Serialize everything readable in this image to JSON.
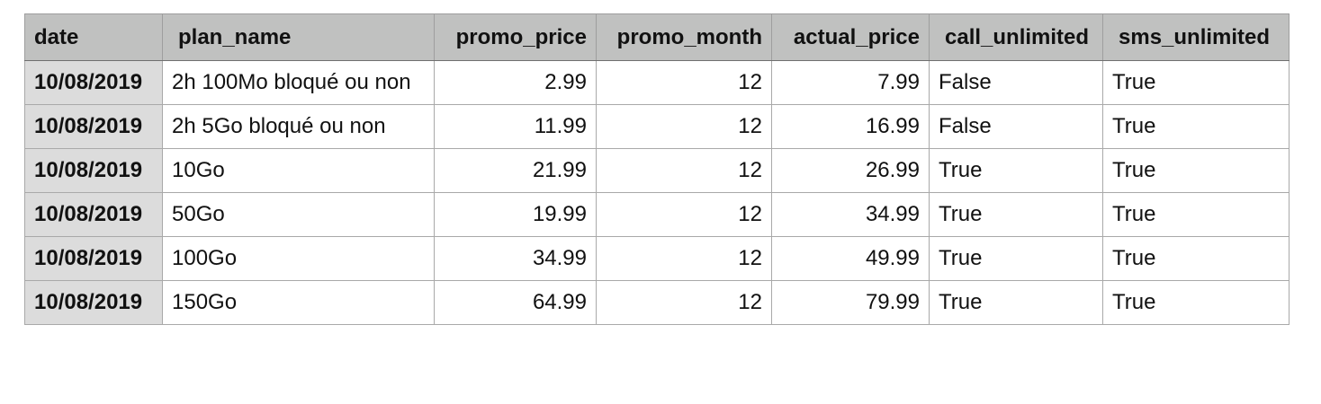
{
  "table": {
    "headers": [
      {
        "key": "date",
        "label": "date",
        "align": "left"
      },
      {
        "key": "plan_name",
        "label": "plan_name",
        "align": "left"
      },
      {
        "key": "promo_price",
        "label": "promo_price",
        "align": "right"
      },
      {
        "key": "promo_month",
        "label": "promo_month",
        "align": "right"
      },
      {
        "key": "actual_price",
        "label": "actual_price",
        "align": "right"
      },
      {
        "key": "call_unlimited",
        "label": "call_unlimited",
        "align": "left"
      },
      {
        "key": "sms_unlimited",
        "label": "sms_unlimited",
        "align": "left"
      }
    ],
    "rows": [
      {
        "date": "10/08/2019",
        "plan_name": "2h 100Mo bloqué ou non",
        "promo_price": "2.99",
        "promo_month": "12",
        "actual_price": "7.99",
        "call_unlimited": "False",
        "sms_unlimited": "True"
      },
      {
        "date": "10/08/2019",
        "plan_name": "2h 5Go bloqué ou non",
        "promo_price": "11.99",
        "promo_month": "12",
        "actual_price": "16.99",
        "call_unlimited": "False",
        "sms_unlimited": "True"
      },
      {
        "date": "10/08/2019",
        "plan_name": "10Go",
        "promo_price": "21.99",
        "promo_month": "12",
        "actual_price": "26.99",
        "call_unlimited": "True",
        "sms_unlimited": "True"
      },
      {
        "date": "10/08/2019",
        "plan_name": "50Go",
        "promo_price": "19.99",
        "promo_month": "12",
        "actual_price": "34.99",
        "call_unlimited": "True",
        "sms_unlimited": "True"
      },
      {
        "date": "10/08/2019",
        "plan_name": "100Go",
        "promo_price": "34.99",
        "promo_month": "12",
        "actual_price": "49.99",
        "call_unlimited": "True",
        "sms_unlimited": "True"
      },
      {
        "date": "10/08/2019",
        "plan_name": "150Go",
        "promo_price": "64.99",
        "promo_month": "12",
        "actual_price": "79.99",
        "call_unlimited": "True",
        "sms_unlimited": "True"
      }
    ]
  }
}
